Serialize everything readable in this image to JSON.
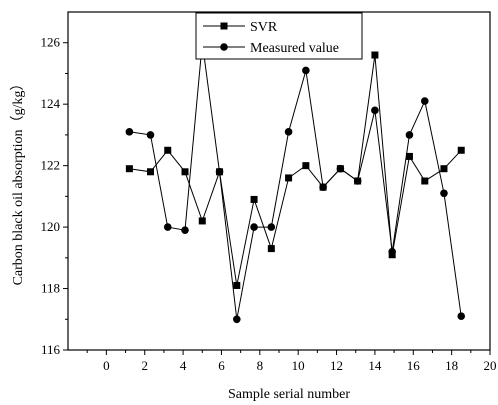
{
  "chart_data": {
    "type": "line",
    "xlabel": "Sample serial number",
    "ylabel": "Carbon black oil absorption（g/kg）",
    "xlim": [
      -2,
      20
    ],
    "ylim": [
      116,
      127
    ],
    "xticks": [
      0,
      2,
      4,
      6,
      8,
      10,
      12,
      14,
      16,
      18,
      20
    ],
    "yticks": [
      116,
      118,
      120,
      122,
      124,
      126
    ],
    "grid": false,
    "legend_position": "top-center",
    "series": [
      {
        "name": "SVR",
        "marker": "square",
        "x": [
          1.2,
          2.3,
          3.2,
          4.1,
          5.0,
          5.9,
          6.8,
          7.7,
          8.6,
          9.5,
          10.4,
          11.3,
          12.2,
          13.1,
          14.0,
          14.9,
          15.8,
          16.6,
          17.6,
          18.5
        ],
        "values": [
          121.9,
          121.8,
          122.5,
          121.8,
          120.2,
          121.8,
          118.1,
          120.9,
          119.3,
          121.6,
          122.0,
          121.3,
          121.9,
          121.5,
          125.6,
          119.1,
          122.3,
          121.5,
          121.9,
          122.5
        ]
      },
      {
        "name": "Measured value",
        "marker": "circle",
        "x": [
          1.2,
          2.3,
          3.2,
          4.1,
          5.0,
          5.9,
          6.8,
          7.7,
          8.6,
          9.5,
          10.4,
          11.3,
          12.2,
          13.1,
          14.0,
          14.9,
          15.8,
          16.6,
          17.6,
          18.5
        ],
        "values": [
          123.1,
          123.0,
          120.0,
          119.9,
          126.0,
          121.8,
          117.0,
          120.0,
          120.0,
          123.1,
          125.1,
          121.3,
          121.9,
          121.5,
          123.8,
          119.2,
          123.0,
          124.1,
          121.1,
          117.1
        ]
      }
    ]
  }
}
